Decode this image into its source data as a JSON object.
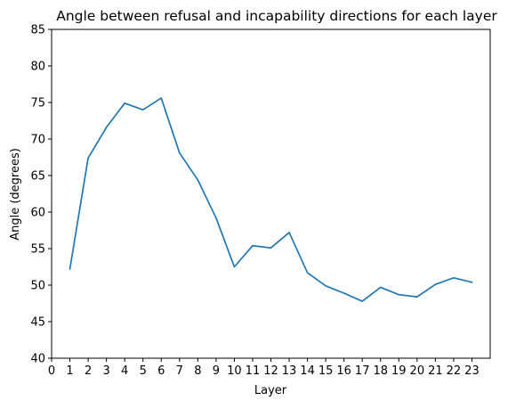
{
  "chart_data": {
    "type": "line",
    "title": "Angle between refusal and incapability directions for each layer",
    "xlabel": "Layer",
    "ylabel": "Angle (degrees)",
    "xlim": [
      0,
      24
    ],
    "ylim": [
      40,
      85
    ],
    "xticks": [
      0,
      1,
      2,
      3,
      4,
      5,
      6,
      7,
      8,
      9,
      10,
      11,
      12,
      13,
      14,
      15,
      16,
      17,
      18,
      19,
      20,
      21,
      22,
      23
    ],
    "yticks": [
      40,
      45,
      50,
      55,
      60,
      65,
      70,
      75,
      80,
      85
    ],
    "grid": false,
    "legend": false,
    "line_color": "#1f77b4",
    "series": [
      {
        "x": [
          1,
          2,
          3,
          4,
          5,
          6,
          7,
          8,
          9,
          10,
          11,
          12,
          13,
          14,
          15,
          16,
          17,
          18,
          19,
          20,
          21,
          22,
          23
        ],
        "values": [
          52.2,
          67.4,
          71.6,
          74.9,
          74.0,
          75.6,
          68.1,
          64.4,
          59.2,
          52.5,
          55.4,
          55.1,
          57.2,
          51.7,
          49.9,
          48.9,
          47.8,
          49.7,
          48.7,
          48.4,
          50.1,
          51.0,
          50.4
        ]
      }
    ]
  }
}
